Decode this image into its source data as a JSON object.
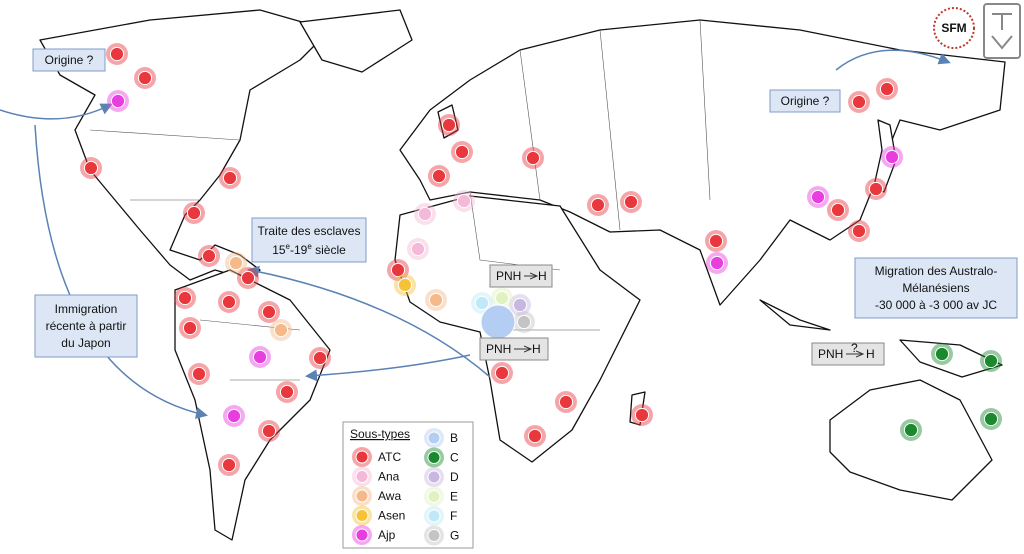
{
  "labels": {
    "origin_west": "Origine ?",
    "origin_east": "Origine ?",
    "immigration": [
      "Immigration",
      "récente à partir",
      "du Japon"
    ],
    "slave_trade": {
      "line1": "Traite des esclaves",
      "start": "15",
      "sup1": "e",
      "mid": "-19",
      "sup2": "e",
      "end": " siècle"
    },
    "migration": [
      "Migration des Australo-",
      "Mélanésiens",
      "-30 000 à -3 000 av JC"
    ],
    "pnh_boxes": [
      {
        "from": "PNH",
        "to": "H"
      },
      {
        "from": "PNH",
        "to": "H"
      },
      {
        "from": "PNH",
        "mark": "?",
        "to": "H"
      }
    ]
  },
  "legend": {
    "title": "Sous-types",
    "items": [
      {
        "name": "ATC",
        "color": "#e8383d"
      },
      {
        "name": "Ana",
        "color": "#f4b8d8"
      },
      {
        "name": "Awa",
        "color": "#f5b98a"
      },
      {
        "name": "Asen",
        "color": "#f5c23a"
      },
      {
        "name": "Ajp",
        "color": "#e83ee0"
      },
      {
        "name": "B",
        "color": "#b4cdf2"
      },
      {
        "name": "C",
        "color": "#1b8a2e"
      },
      {
        "name": "D",
        "color": "#c8b7e0"
      },
      {
        "name": "E",
        "color": "#dff2c0"
      },
      {
        "name": "F",
        "color": "#bfe9f7"
      },
      {
        "name": "G",
        "color": "#c4c4c4"
      }
    ]
  },
  "logos": {
    "sfm": "SFM"
  }
}
